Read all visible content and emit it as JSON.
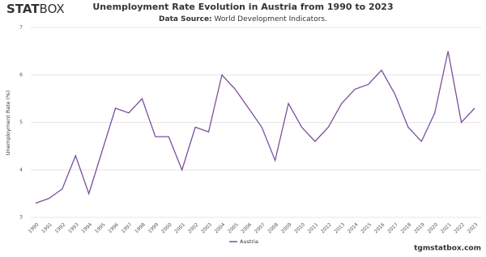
{
  "chart_data": {
    "type": "line",
    "logo": {
      "bold": "STAT",
      "light": "BOX"
    },
    "title": "Unemployment Rate Evolution in Austria from 1990 to 2023",
    "source_label": "Data Source:",
    "source": "World Development Indicators.",
    "y_label": "Unemployment Rate (%)",
    "footer": "tgmstatbox.com",
    "categories": [
      "1990",
      "1991",
      "1992",
      "1993",
      "1994",
      "1995",
      "1996",
      "1997",
      "1998",
      "1999",
      "2000",
      "2001",
      "2002",
      "2003",
      "2004",
      "2005",
      "2006",
      "2007",
      "2008",
      "2009",
      "2010",
      "2011",
      "2012",
      "2013",
      "2014",
      "2015",
      "2016",
      "2017",
      "2018",
      "2019",
      "2020",
      "2021",
      "2022",
      "2023"
    ],
    "series": [
      {
        "name": "Austria",
        "color": "#7b4f9d",
        "values": [
          3.3,
          3.4,
          3.6,
          4.3,
          3.5,
          4.4,
          5.3,
          5.2,
          5.5,
          4.7,
          4.7,
          4.0,
          4.9,
          4.8,
          6.0,
          5.7,
          5.3,
          4.9,
          4.2,
          5.4,
          4.9,
          4.6,
          4.9,
          5.4,
          5.7,
          5.8,
          6.1,
          5.6,
          4.9,
          4.6,
          5.2,
          6.5,
          5.0,
          5.3
        ]
      }
    ],
    "ylim": [
      3,
      7
    ],
    "yticks": [
      3,
      4,
      5,
      6,
      7
    ],
    "grid": true
  }
}
